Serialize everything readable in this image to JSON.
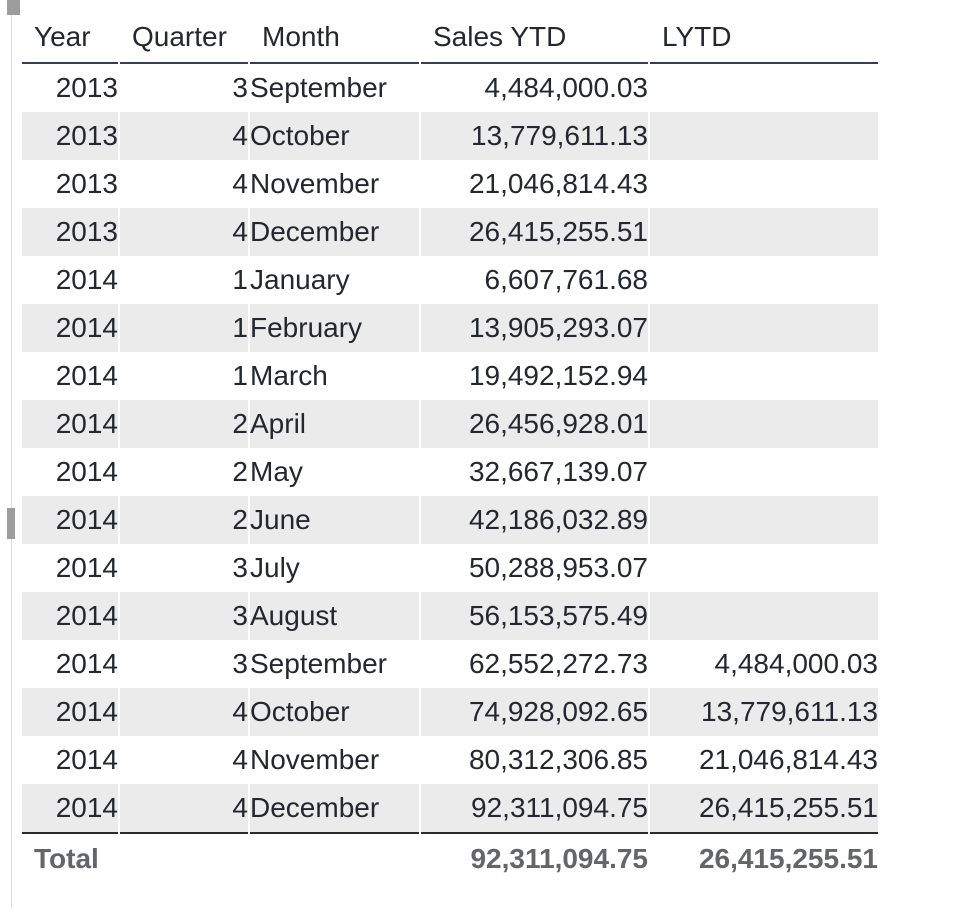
{
  "chart_data": {
    "type": "table",
    "columns": [
      {
        "key": "year",
        "label": "Year"
      },
      {
        "key": "quarter",
        "label": "Quarter"
      },
      {
        "key": "month",
        "label": "Month"
      },
      {
        "key": "sales-ytd",
        "label": "Sales YTD"
      },
      {
        "key": "lytd",
        "label": "LYTD"
      }
    ],
    "rows": [
      [
        "2013",
        "3",
        "September",
        "4,484,000.03",
        ""
      ],
      [
        "2013",
        "4",
        "October",
        "13,779,611.13",
        ""
      ],
      [
        "2013",
        "4",
        "November",
        "21,046,814.43",
        ""
      ],
      [
        "2013",
        "4",
        "December",
        "26,415,255.51",
        ""
      ],
      [
        "2014",
        "1",
        "January",
        "6,607,761.68",
        ""
      ],
      [
        "2014",
        "1",
        "February",
        "13,905,293.07",
        ""
      ],
      [
        "2014",
        "1",
        "March",
        "19,492,152.94",
        ""
      ],
      [
        "2014",
        "2",
        "April",
        "26,456,928.01",
        ""
      ],
      [
        "2014",
        "2",
        "May",
        "32,667,139.07",
        ""
      ],
      [
        "2014",
        "2",
        "June",
        "42,186,032.89",
        ""
      ],
      [
        "2014",
        "3",
        "July",
        "50,288,953.07",
        ""
      ],
      [
        "2014",
        "3",
        "August",
        "56,153,575.49",
        ""
      ],
      [
        "2014",
        "3",
        "September",
        "62,552,272.73",
        "4,484,000.03"
      ],
      [
        "2014",
        "4",
        "October",
        "74,928,092.65",
        "13,779,611.13"
      ],
      [
        "2014",
        "4",
        "November",
        "80,312,306.85",
        "21,046,814.43"
      ],
      [
        "2014",
        "4",
        "December",
        "92,311,094.75",
        "26,415,255.51"
      ]
    ],
    "total_row": [
      "Total",
      "",
      "",
      "92,311,094.75",
      "26,415,255.51"
    ],
    "layout": {
      "banding": "every second row shaded",
      "value_alignment": [
        "right",
        "right",
        "left",
        "right",
        "right"
      ],
      "header_alignment": "left",
      "grid": "off"
    }
  },
  "colors": {
    "background": "#ffffff",
    "body_text": "#24272e",
    "band": "#ebebeb",
    "header_border": "#3a3f4b",
    "total_border": "#2b2d33",
    "total_text": "#636569",
    "handle_gray": "#9d9d9d",
    "edge_line": "#dcdcdc"
  }
}
